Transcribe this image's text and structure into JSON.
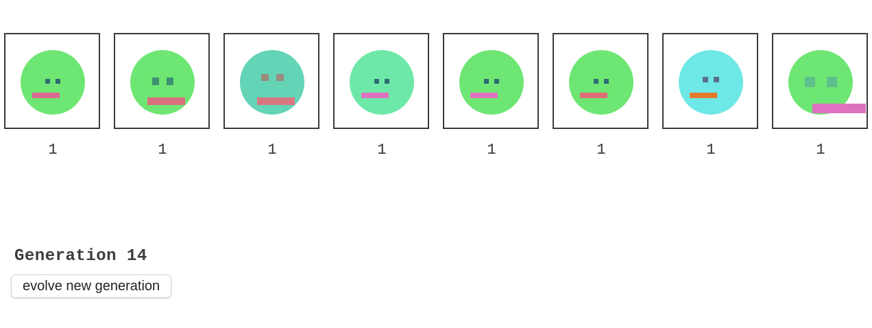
{
  "faces": [
    {
      "score": "1",
      "skin": "#6ee673",
      "eyes": "#2e6b74",
      "mouth": "#d96b91"
    },
    {
      "score": "1",
      "skin": "#6ee673",
      "eyes": "#3c8f72",
      "mouth": "#d9707c"
    },
    {
      "score": "1",
      "skin": "#63d4b5",
      "eyes": "#9a8a7c",
      "mouth": "#d97780"
    },
    {
      "score": "1",
      "skin": "#6ee8a8",
      "eyes": "#2e6b74",
      "mouth": "#de72c0"
    },
    {
      "score": "1",
      "skin": "#6ee673",
      "eyes": "#2e6b74",
      "mouth": "#de72c0"
    },
    {
      "score": "1",
      "skin": "#6ee673",
      "eyes": "#2e6b74",
      "mouth": "#de6f76"
    },
    {
      "score": "1",
      "skin": "#6ee8e6",
      "eyes": "#5a6e88",
      "mouth": "#e27a2e"
    },
    {
      "score": "1",
      "skin": "#6ee673",
      "eyes": "#5ec08c",
      "mouth": "#de72c0"
    }
  ],
  "generation": {
    "label": "Generation 14"
  },
  "evolve_button": {
    "label": "evolve new generation"
  }
}
